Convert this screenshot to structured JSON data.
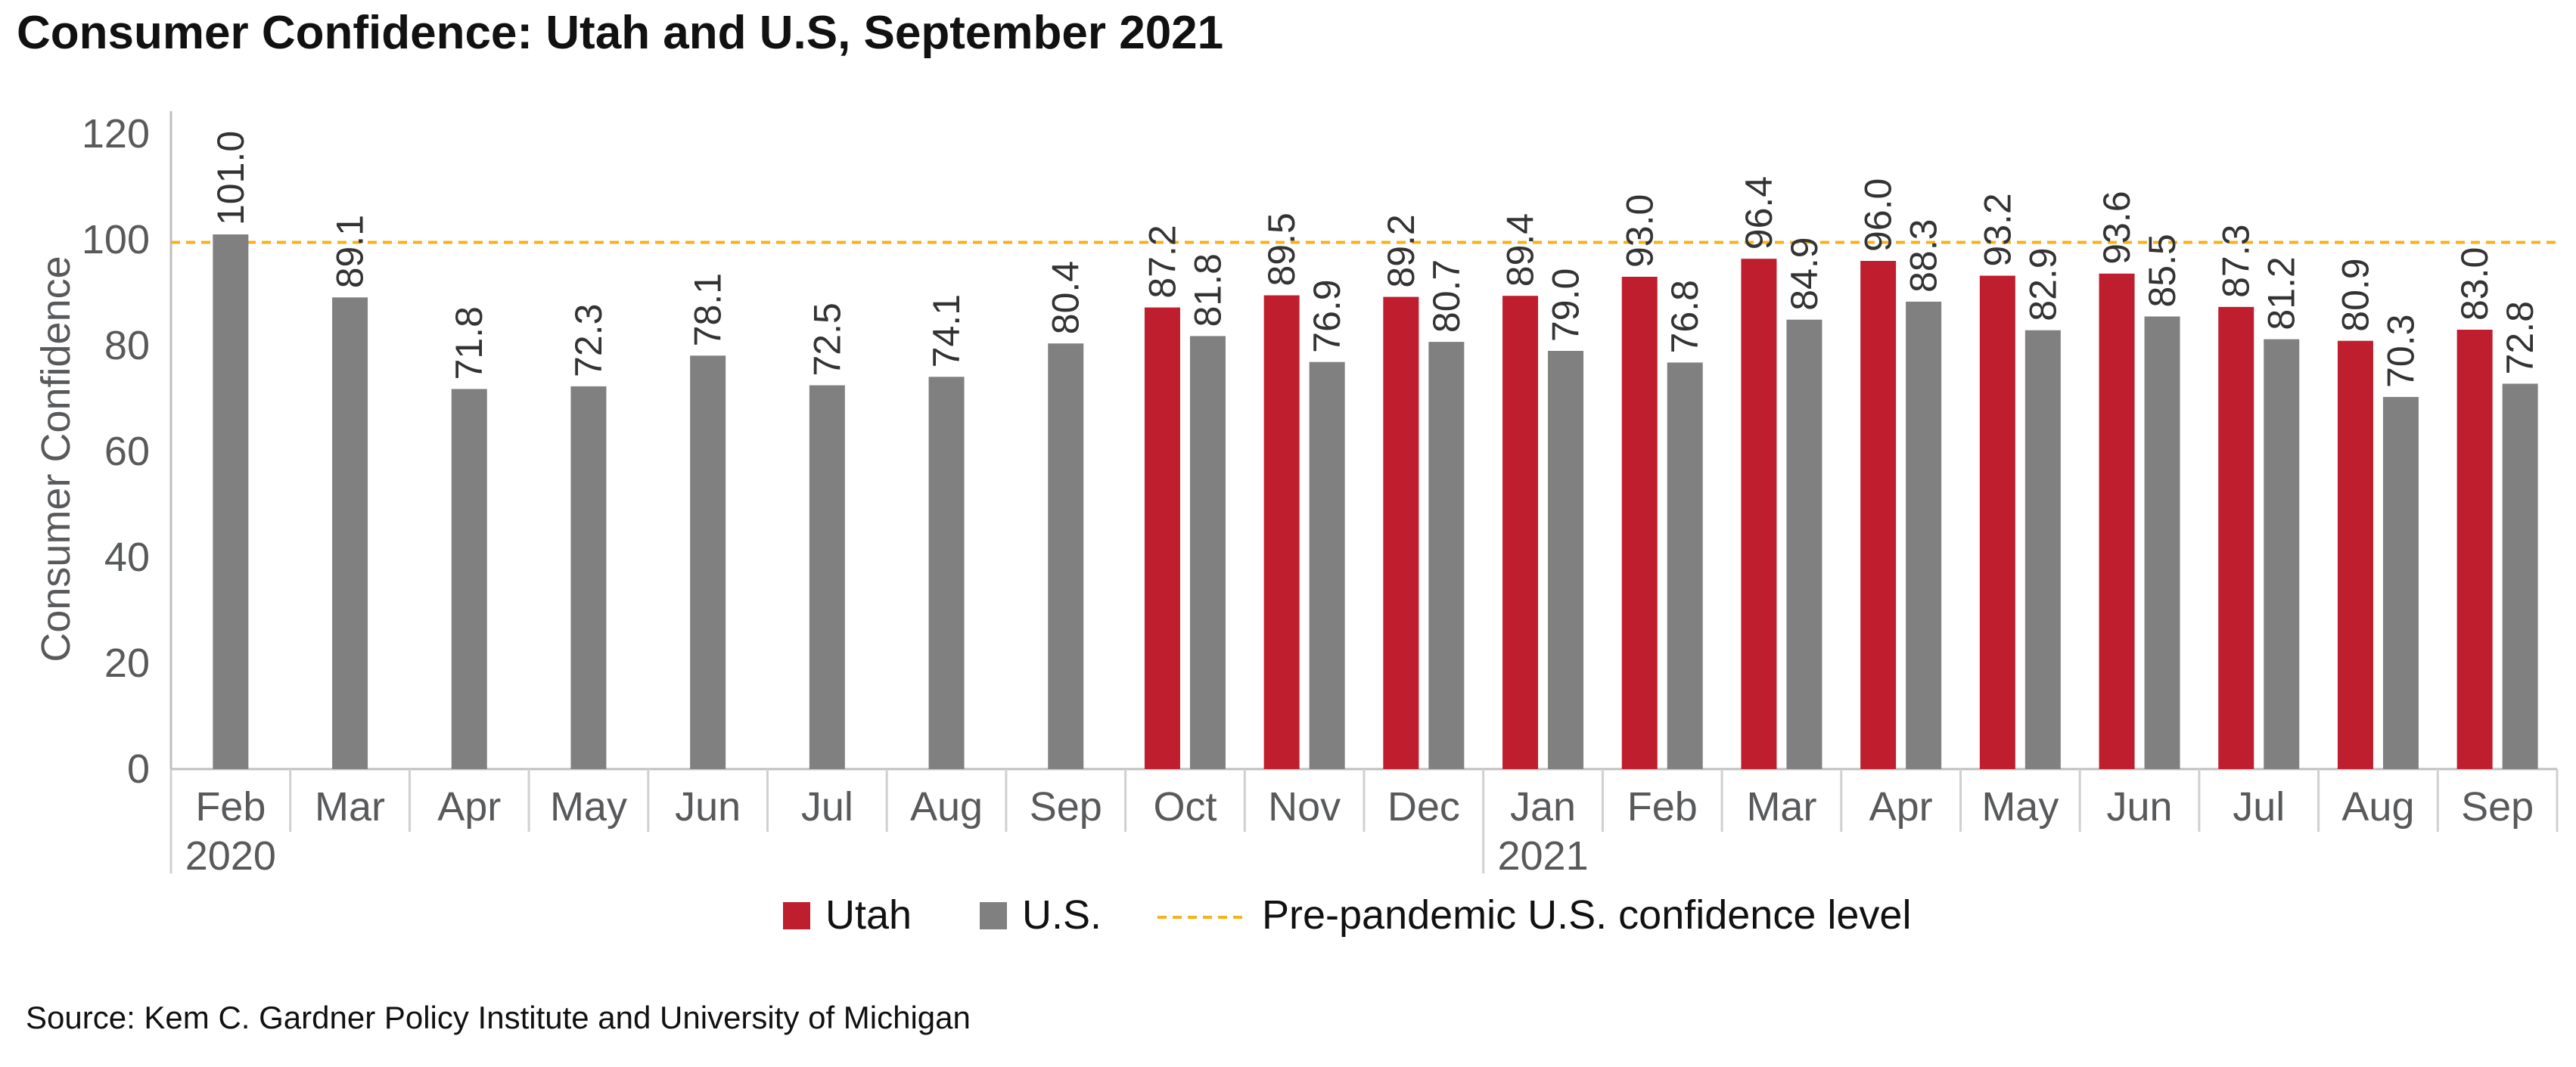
{
  "chart_data": {
    "type": "bar",
    "title": "Consumer Confidence: Utah and U.S, September 2021",
    "ylabel": "Consumer Confidence",
    "xlabel": "",
    "ylim": [
      0,
      120
    ],
    "yticks": [
      0,
      20,
      40,
      60,
      80,
      100,
      120
    ],
    "categories": [
      {
        "month": "Feb",
        "year": "2020"
      },
      {
        "month": "Mar",
        "year": ""
      },
      {
        "month": "Apr",
        "year": ""
      },
      {
        "month": "May",
        "year": ""
      },
      {
        "month": "Jun",
        "year": ""
      },
      {
        "month": "Jul",
        "year": ""
      },
      {
        "month": "Aug",
        "year": ""
      },
      {
        "month": "Sep",
        "year": ""
      },
      {
        "month": "Oct",
        "year": ""
      },
      {
        "month": "Nov",
        "year": ""
      },
      {
        "month": "Dec",
        "year": ""
      },
      {
        "month": "Jan",
        "year": "2021"
      },
      {
        "month": "Feb",
        "year": ""
      },
      {
        "month": "Mar",
        "year": ""
      },
      {
        "month": "Apr",
        "year": ""
      },
      {
        "month": "May",
        "year": ""
      },
      {
        "month": "Jun",
        "year": ""
      },
      {
        "month": "Jul",
        "year": ""
      },
      {
        "month": "Aug",
        "year": ""
      },
      {
        "month": "Sep",
        "year": ""
      }
    ],
    "series": [
      {
        "name": "Utah",
        "color": "#be1e2d",
        "values": [
          null,
          null,
          null,
          null,
          null,
          null,
          null,
          null,
          87.2,
          89.5,
          89.2,
          89.4,
          93.0,
          96.4,
          96.0,
          93.2,
          93.6,
          87.3,
          80.9,
          83.0
        ],
        "labels": [
          null,
          null,
          null,
          null,
          null,
          null,
          null,
          null,
          "87.2",
          "89.5",
          "89.2",
          "89.4",
          "93.0",
          "96.4",
          "96.0",
          "93.2",
          "93.6",
          "87.3",
          "80.9",
          "83.0"
        ]
      },
      {
        "name": "U.S.",
        "color": "#808080",
        "values": [
          101.0,
          89.1,
          71.8,
          72.3,
          78.1,
          72.5,
          74.1,
          80.4,
          81.8,
          76.9,
          80.7,
          79.0,
          76.8,
          84.9,
          88.3,
          82.9,
          85.5,
          81.2,
          70.3,
          72.8
        ],
        "labels": [
          "101.0",
          "89.1",
          "71.8",
          "72.3",
          "78.1",
          "72.5",
          "74.1",
          "80.4",
          "81.8",
          "76.9",
          "80.7",
          "79.0",
          "76.8",
          "84.9",
          "88.3",
          "82.9",
          "85.5",
          "81.2",
          "70.3",
          "72.8"
        ]
      }
    ],
    "reference_line": {
      "name": "Pre-pandemic U.S. confidence level",
      "value": 99.5,
      "color": "#f5b21a",
      "style": "dashed"
    },
    "legend": {
      "position": "bottom-center",
      "items": [
        {
          "label": "Utah",
          "color": "#be1e2d",
          "kind": "box"
        },
        {
          "label": "U.S.",
          "color": "#808080",
          "kind": "box"
        },
        {
          "label": "Pre-pandemic U.S. confidence level",
          "color": "#f5b21a",
          "kind": "dashed-line"
        }
      ]
    },
    "grid": false,
    "source": "Source: Kem C. Gardner Policy Institute and University of Michigan"
  }
}
